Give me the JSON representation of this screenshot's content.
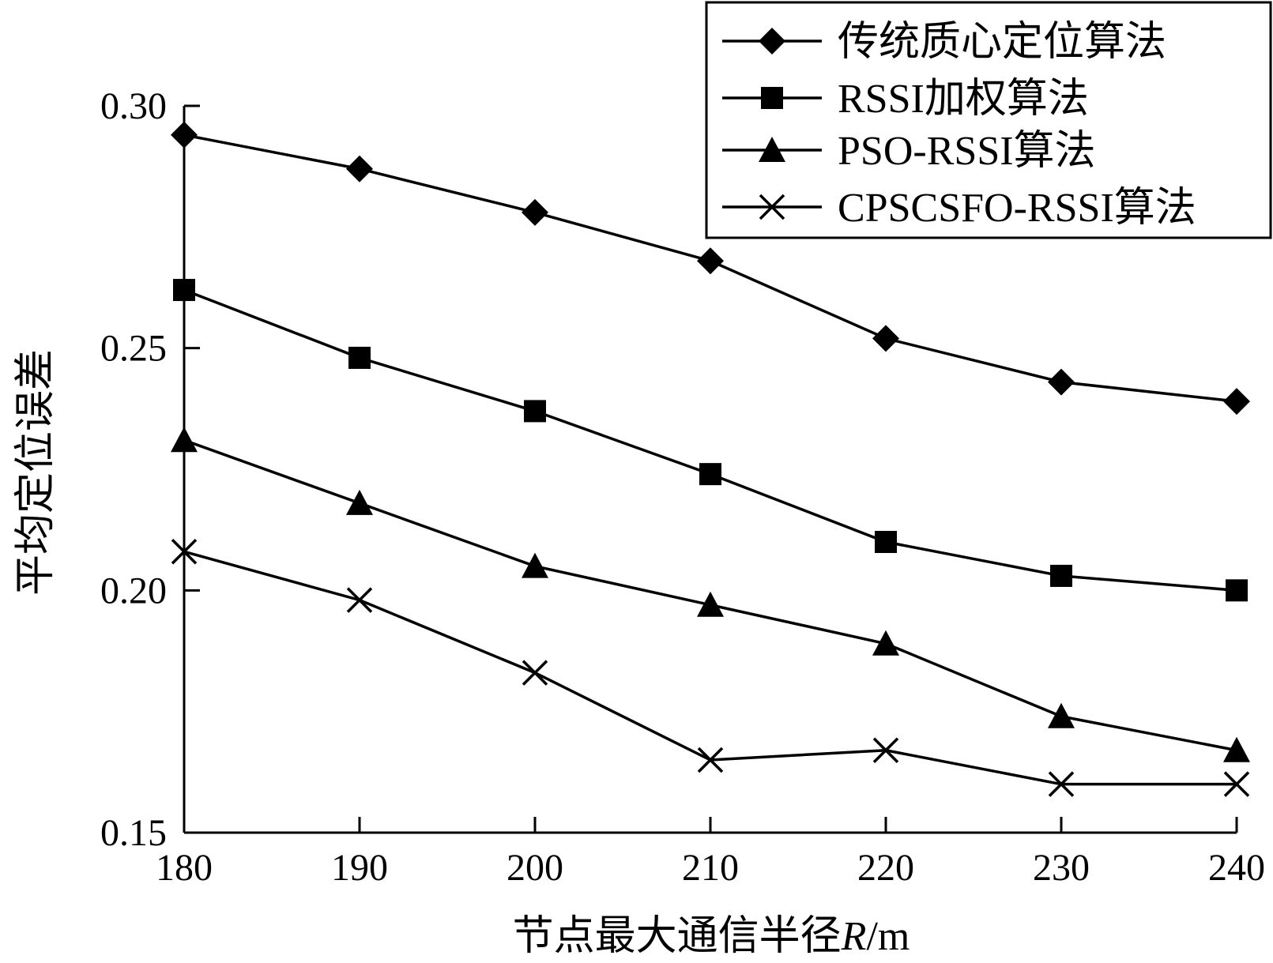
{
  "chart_data": {
    "type": "line",
    "title": "",
    "xlabel": "节点最大通信半径",
    "xlabel_var": "R",
    "xlabel_unit": "/m",
    "ylabel": "平均定位误差",
    "x": [
      180,
      190,
      200,
      210,
      220,
      230,
      240
    ],
    "xlim": [
      180,
      240
    ],
    "ylim": [
      0.15,
      0.3
    ],
    "x_ticks": [
      "180",
      "190",
      "200",
      "210",
      "220",
      "230",
      "240"
    ],
    "y_ticks": [
      {
        "value": 0.3,
        "label": "0.30"
      },
      {
        "value": 0.25,
        "label": "0.25"
      },
      {
        "value": 0.2,
        "label": "0.20"
      },
      {
        "value": 0.15,
        "label": "0.15"
      }
    ],
    "grid": false,
    "legend_position": "top-right",
    "line_color": "#000000",
    "series": [
      {
        "name": "传统质心定位算法",
        "marker": "diamond",
        "values": [
          0.294,
          0.287,
          0.278,
          0.268,
          0.252,
          0.243,
          0.239
        ]
      },
      {
        "name": "RSSI加权算法",
        "marker": "square",
        "values": [
          0.262,
          0.248,
          0.237,
          0.224,
          0.21,
          0.203,
          0.2
        ]
      },
      {
        "name": "PSO-RSSI算法",
        "marker": "triangle",
        "values": [
          0.231,
          0.218,
          0.205,
          0.197,
          0.189,
          0.174,
          0.167
        ]
      },
      {
        "name": "CPSCSFO-RSSI算法",
        "marker": "x",
        "values": [
          0.208,
          0.198,
          0.183,
          0.165,
          0.167,
          0.16,
          0.16
        ]
      }
    ]
  }
}
